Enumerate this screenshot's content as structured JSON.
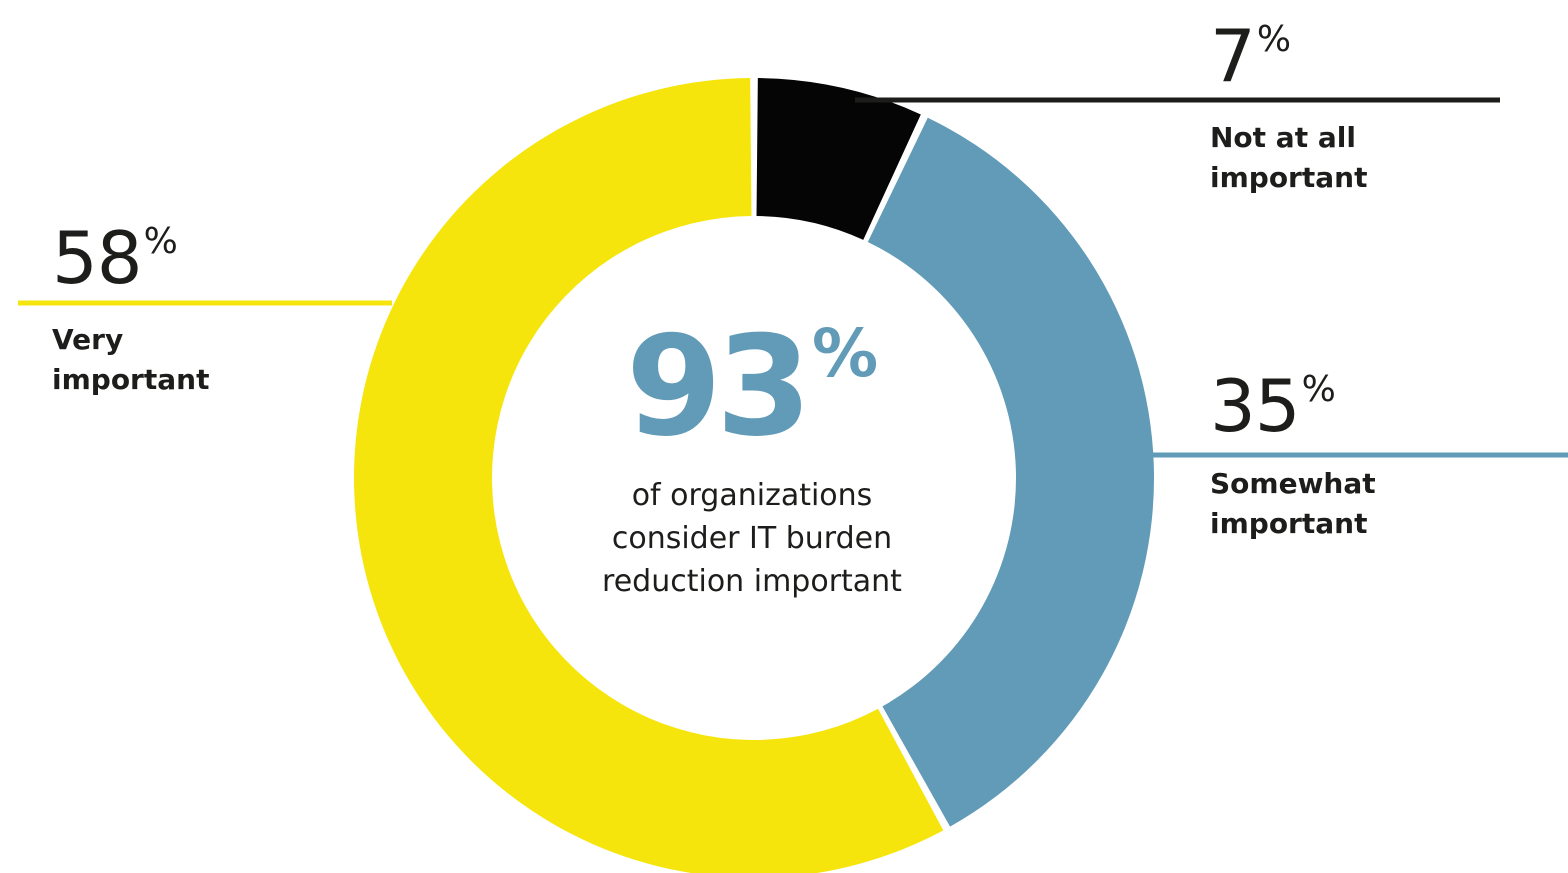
{
  "chart_data": {
    "type": "pie",
    "style": "donut",
    "slices": [
      {
        "key": "not",
        "label": "Not at all important",
        "value": 7,
        "color": "#050505",
        "display": "7",
        "unit": "%"
      },
      {
        "key": "some",
        "label": "Somewhat important",
        "value": 35,
        "color": "#619bb7",
        "display": "35",
        "unit": "%"
      },
      {
        "key": "very",
        "label": "Very important",
        "value": 58,
        "color": "#f5e50c",
        "display": "58",
        "unit": "%"
      }
    ],
    "center": {
      "value": "93",
      "unit": "%",
      "value_color": "#619bb7",
      "caption_lines": [
        "of organizations",
        "consider IT burden",
        "reduction important"
      ]
    },
    "callouts": {
      "very": {
        "value": "58",
        "unit": "%",
        "label_lines": [
          "Very",
          "important"
        ]
      },
      "some": {
        "value": "35",
        "unit": "%",
        "label_lines": [
          "Somewhat",
          "important"
        ]
      },
      "not": {
        "value": "7",
        "unit": "%",
        "label_lines": [
          "Not at all",
          "important"
        ]
      }
    }
  }
}
